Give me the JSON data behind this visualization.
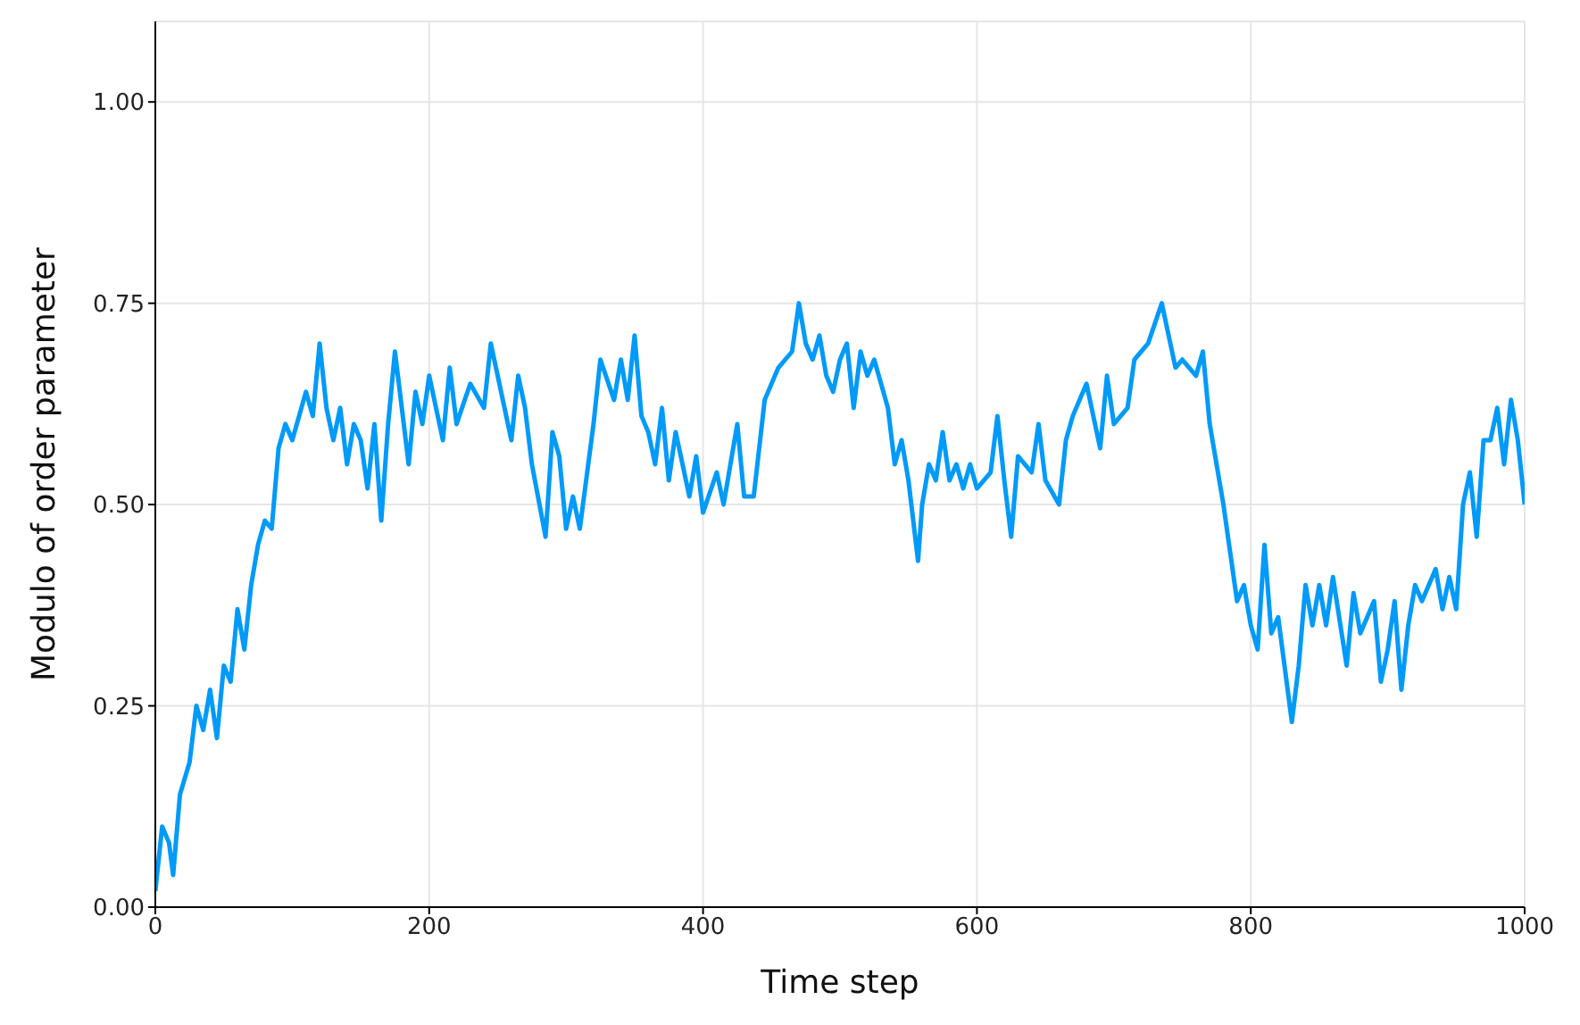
{
  "chart_data": {
    "type": "line",
    "xlabel": "Time step",
    "ylabel": "Modulo of order parameter",
    "xlim": [
      0,
      1000
    ],
    "ylim": [
      0,
      1.1
    ],
    "xticks": [
      0,
      200,
      400,
      600,
      800,
      1000
    ],
    "yticks": [
      {
        "value": 0,
        "label": "0.00"
      },
      {
        "value": 0.25,
        "label": "0.25"
      },
      {
        "value": 0.5,
        "label": "0.50"
      },
      {
        "value": 0.75,
        "label": "0.75"
      },
      {
        "value": 1,
        "label": "1.00"
      }
    ],
    "grid": true,
    "legend": false,
    "marker": "none",
    "line_style": "solid",
    "series": [
      {
        "color": "#009af9",
        "x": [
          0,
          5,
          10,
          13,
          18,
          25,
          30,
          35,
          40,
          45,
          50,
          55,
          60,
          65,
          70,
          75,
          80,
          85,
          90,
          95,
          100,
          110,
          115,
          120,
          125,
          130,
          135,
          140,
          145,
          150,
          155,
          160,
          165,
          170,
          175,
          180,
          185,
          190,
          195,
          200,
          210,
          215,
          220,
          230,
          240,
          245,
          250,
          255,
          260,
          265,
          270,
          275,
          285,
          290,
          295,
          300,
          305,
          310,
          320,
          325,
          335,
          340,
          345,
          350,
          355,
          360,
          365,
          370,
          375,
          380,
          390,
          395,
          400,
          410,
          415,
          420,
          425,
          430,
          437,
          445,
          455,
          465,
          470,
          475,
          480,
          485,
          490,
          495,
          500,
          505,
          510,
          515,
          520,
          525,
          535,
          540,
          545,
          550,
          557,
          560,
          565,
          570,
          575,
          580,
          585,
          590,
          595,
          600,
          610,
          615,
          620,
          625,
          630,
          640,
          645,
          650,
          660,
          665,
          670,
          680,
          690,
          695,
          700,
          710,
          715,
          725,
          735,
          740,
          745,
          750,
          760,
          765,
          770,
          780,
          790,
          795,
          800,
          805,
          810,
          815,
          820,
          830,
          835,
          840,
          845,
          850,
          855,
          860,
          870,
          875,
          880,
          890,
          895,
          900,
          905,
          910,
          915,
          920,
          925,
          935,
          940,
          945,
          950,
          955,
          960,
          965,
          970,
          975,
          980,
          985,
          990,
          995,
          1000
        ],
        "values": [
          0.02,
          0.1,
          0.08,
          0.04,
          0.14,
          0.18,
          0.25,
          0.22,
          0.27,
          0.21,
          0.3,
          0.28,
          0.37,
          0.32,
          0.4,
          0.45,
          0.48,
          0.47,
          0.57,
          0.6,
          0.58,
          0.64,
          0.61,
          0.7,
          0.62,
          0.58,
          0.62,
          0.55,
          0.6,
          0.58,
          0.52,
          0.6,
          0.48,
          0.6,
          0.69,
          0.62,
          0.55,
          0.64,
          0.6,
          0.66,
          0.58,
          0.67,
          0.6,
          0.65,
          0.62,
          0.7,
          0.66,
          0.62,
          0.58,
          0.66,
          0.62,
          0.55,
          0.46,
          0.59,
          0.56,
          0.47,
          0.51,
          0.47,
          0.6,
          0.68,
          0.63,
          0.68,
          0.63,
          0.71,
          0.61,
          0.59,
          0.55,
          0.62,
          0.53,
          0.59,
          0.51,
          0.56,
          0.49,
          0.54,
          0.5,
          0.55,
          0.6,
          0.51,
          0.51,
          0.63,
          0.67,
          0.69,
          0.75,
          0.7,
          0.68,
          0.71,
          0.66,
          0.64,
          0.68,
          0.7,
          0.62,
          0.69,
          0.66,
          0.68,
          0.62,
          0.55,
          0.58,
          0.53,
          0.43,
          0.5,
          0.55,
          0.53,
          0.59,
          0.53,
          0.55,
          0.52,
          0.55,
          0.52,
          0.54,
          0.61,
          0.53,
          0.46,
          0.56,
          0.54,
          0.6,
          0.53,
          0.5,
          0.58,
          0.61,
          0.65,
          0.57,
          0.66,
          0.6,
          0.62,
          0.68,
          0.7,
          0.75,
          0.71,
          0.67,
          0.68,
          0.66,
          0.69,
          0.6,
          0.5,
          0.38,
          0.4,
          0.35,
          0.32,
          0.45,
          0.34,
          0.36,
          0.23,
          0.3,
          0.4,
          0.35,
          0.4,
          0.35,
          0.41,
          0.3,
          0.39,
          0.34,
          0.38,
          0.28,
          0.32,
          0.38,
          0.27,
          0.35,
          0.4,
          0.38,
          0.42,
          0.37,
          0.41,
          0.37,
          0.5,
          0.54,
          0.46,
          0.58,
          0.58,
          0.62,
          0.55,
          0.63,
          0.58,
          0.5
        ]
      }
    ]
  }
}
